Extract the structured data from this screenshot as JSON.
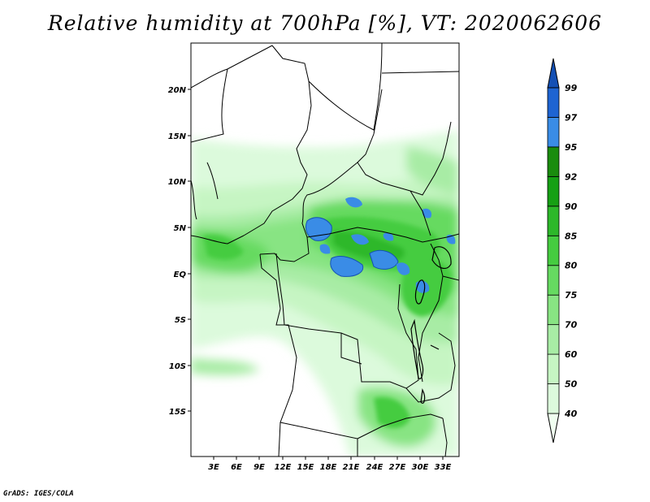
{
  "title": "Relative humidity at 700hPa [%], VT: 2020062606",
  "credit": "GrADS: IGES/COLA",
  "map": {
    "lat_labels": [
      "20N",
      "15N",
      "10N",
      "5N",
      "EQ",
      "5S",
      "10S",
      "15S"
    ],
    "lon_labels": [
      "3E",
      "6E",
      "9E",
      "12E",
      "15E",
      "18E",
      "21E",
      "24E",
      "27E",
      "30E",
      "33E"
    ]
  },
  "colorbar": {
    "labels": [
      "40",
      "50",
      "60",
      "70",
      "75",
      "80",
      "85",
      "90",
      "92",
      "95",
      "97",
      "99"
    ],
    "colors": [
      "#f0fff0",
      "#dcfadc",
      "#c6f5c3",
      "#a8eca5",
      "#88e483",
      "#66da61",
      "#45cc40",
      "#2db82a",
      "#16a014",
      "#1a8c0e",
      "#3a8ce6",
      "#1e64d2",
      "#1450b4"
    ]
  }
}
